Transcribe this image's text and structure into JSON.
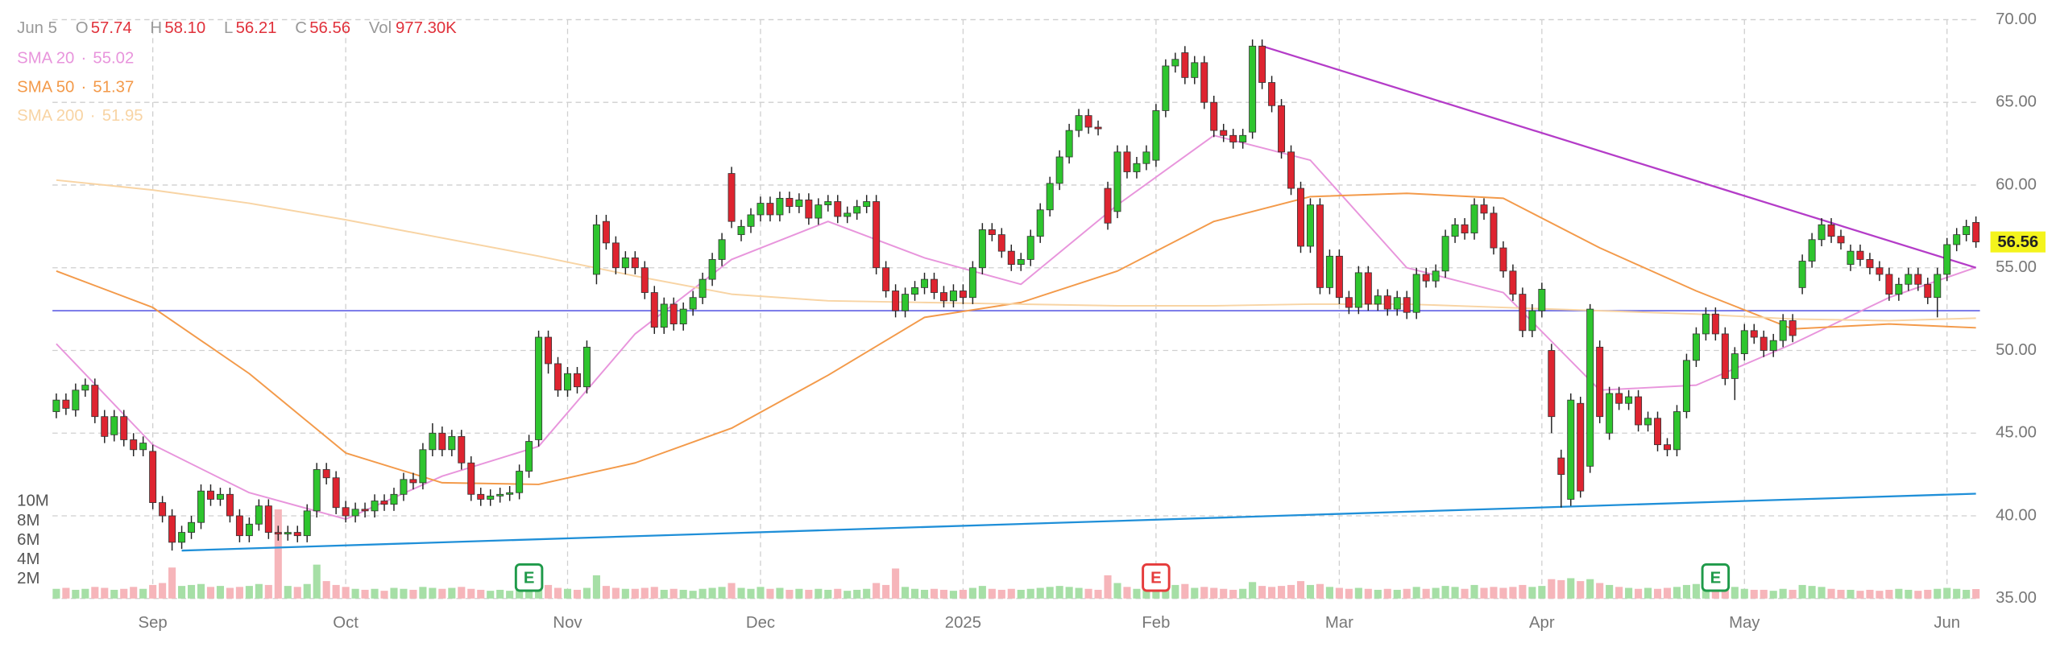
{
  "header": {
    "date": "Jun 5",
    "o_label": "O",
    "o": "57.74",
    "h_label": "H",
    "h": "58.10",
    "l_label": "L",
    "l": "56.21",
    "c_label": "C",
    "c": "56.56",
    "vol_label": "Vol",
    "vol": "977.30K"
  },
  "chart_data": {
    "type": "candlestick",
    "xlim": [
      -0.4,
      200.5
    ],
    "xticks": [
      {
        "value": 10,
        "label": "Sep"
      },
      {
        "value": 30,
        "label": "Oct"
      },
      {
        "value": 53,
        "label": "Nov"
      },
      {
        "value": 73,
        "label": "Dec"
      },
      {
        "value": 94,
        "label": "2025"
      },
      {
        "value": 114,
        "label": "Feb"
      },
      {
        "value": 133,
        "label": "Mar"
      },
      {
        "value": 154,
        "label": "Apr"
      },
      {
        "value": 175,
        "label": "May"
      },
      {
        "value": 196,
        "label": "Jun"
      }
    ],
    "ylim": [
      35,
      70
    ],
    "yticks": [
      {
        "value": 35,
        "label": "35.00"
      },
      {
        "value": 40,
        "label": "40.00"
      },
      {
        "value": 45,
        "label": "45.00"
      },
      {
        "value": 50,
        "label": "50.00"
      },
      {
        "value": 55,
        "label": "55.00"
      },
      {
        "value": 60,
        "label": "60.00"
      },
      {
        "value": 65,
        "label": "65.00"
      },
      {
        "value": 70,
        "label": "70.00"
      }
    ],
    "y2lim": [
      0,
      10
    ],
    "y2ticks": [
      {
        "value": 2,
        "label": "2M"
      },
      {
        "value": 4,
        "label": "4M"
      },
      {
        "value": 6,
        "label": "6M"
      },
      {
        "value": 8,
        "label": "8M"
      },
      {
        "value": 10,
        "label": "10M"
      }
    ],
    "grid": true,
    "open": [
      46.3,
      47.0,
      46.4,
      47.6,
      47.9,
      46.0,
      44.9,
      46.0,
      44.6,
      44.0,
      43.9,
      40.8,
      40.0,
      38.4,
      39.0,
      39.6,
      41.5,
      41.0,
      41.3,
      40.0,
      38.8,
      39.5,
      40.6,
      39.0,
      38.9,
      39.0,
      38.8,
      40.3,
      42.8,
      42.3,
      40.5,
      40.0,
      40.4,
      40.3,
      40.9,
      40.7,
      41.3,
      42.2,
      42.0,
      44.0,
      45.0,
      44.0,
      44.8,
      43.2,
      41.3,
      41.0,
      41.2,
      41.3,
      41.4,
      42.7,
      44.6,
      50.8,
      49.2,
      47.6,
      48.6,
      47.8,
      54.6,
      57.8,
      56.5,
      55.0,
      55.6,
      55.0,
      53.5,
      51.4,
      52.8,
      51.6,
      52.5,
      53.2,
      54.3,
      55.5,
      60.7,
      57.0,
      57.5,
      58.2,
      58.9,
      58.2,
      59.2,
      58.7,
      59.1,
      58.0,
      58.8,
      59.0,
      58.1,
      58.3,
      58.7,
      59.0,
      55.0,
      53.6,
      52.4,
      53.4,
      53.8,
      54.3,
      53.5,
      53.0,
      53.6,
      53.2,
      55.0,
      57.3,
      57.0,
      56.0,
      55.2,
      55.5,
      56.9,
      58.5,
      60.1,
      61.7,
      63.3,
      64.2,
      63.5,
      59.8,
      58.4,
      62.0,
      60.8,
      61.3,
      61.5,
      64.5,
      67.2,
      68.0,
      66.5,
      67.4,
      65.0,
      63.3,
      63.0,
      62.6,
      63.2,
      68.4,
      66.2,
      64.8,
      62.0,
      59.8,
      56.3,
      58.8,
      53.8,
      55.7,
      53.2,
      52.6,
      54.7,
      52.8,
      53.3,
      52.5,
      53.2,
      52.3,
      54.6,
      54.2,
      54.8,
      56.9,
      57.6,
      57.1,
      58.8,
      58.3,
      56.2,
      54.8,
      53.4,
      51.2,
      52.4,
      50.0,
      43.5,
      41.0,
      46.8,
      43.0,
      50.2,
      45.0,
      47.4,
      46.8,
      47.2,
      45.5,
      45.9,
      44.3,
      44.0,
      46.3,
      49.4,
      51.0,
      52.2,
      51.0,
      48.3,
      49.8,
      51.2,
      50.8,
      50.0,
      50.6,
      51.8,
      53.8,
      55.4,
      56.7,
      57.6,
      56.9,
      55.2,
      56.0,
      55.5,
      55.0,
      54.6,
      53.4,
      54.0,
      54.6,
      54.0,
      53.2,
      54.6,
      56.4,
      57.0,
      57.74
    ],
    "high": [
      47.4,
      47.4,
      48.0,
      48.3,
      48.3,
      46.4,
      46.4,
      46.4,
      45.0,
      44.8,
      44.3,
      41.2,
      40.4,
      39.4,
      40.0,
      41.9,
      41.9,
      41.7,
      41.7,
      40.4,
      39.9,
      41.0,
      41.0,
      39.4,
      39.4,
      39.4,
      40.7,
      43.2,
      43.2,
      42.7,
      40.9,
      40.8,
      40.8,
      41.3,
      41.3,
      41.7,
      42.6,
      42.6,
      44.4,
      45.6,
      45.4,
      45.2,
      45.2,
      43.6,
      41.7,
      41.6,
      41.7,
      41.8,
      43.1,
      44.9,
      51.2,
      51.2,
      49.6,
      49.0,
      49.0,
      50.6,
      58.2,
      58.2,
      56.9,
      56.0,
      56.0,
      55.4,
      53.9,
      53.2,
      53.2,
      52.9,
      53.6,
      54.7,
      55.9,
      57.1,
      61.1,
      57.9,
      58.6,
      59.3,
      59.3,
      59.6,
      59.6,
      59.5,
      59.5,
      59.2,
      59.4,
      59.4,
      58.7,
      59.1,
      59.4,
      59.4,
      55.4,
      54.0,
      53.8,
      54.2,
      54.7,
      54.7,
      53.9,
      54.0,
      54.0,
      55.4,
      57.7,
      57.7,
      57.4,
      56.4,
      55.9,
      57.3,
      58.9,
      60.5,
      62.1,
      63.7,
      64.6,
      64.6,
      63.9,
      60.2,
      62.4,
      62.4,
      61.7,
      62.4,
      64.9,
      67.6,
      68.0,
      68.4,
      67.8,
      67.8,
      65.4,
      63.7,
      63.4,
      63.4,
      68.8,
      68.8,
      66.6,
      65.2,
      62.4,
      60.2,
      59.2,
      59.2,
      56.1,
      56.1,
      53.6,
      55.1,
      55.1,
      53.7,
      53.7,
      53.6,
      53.6,
      55.0,
      55.0,
      55.2,
      57.3,
      58.0,
      58.0,
      59.2,
      59.2,
      58.7,
      56.6,
      55.2,
      53.8,
      52.8,
      54.1,
      50.4,
      44.0,
      47.4,
      47.2,
      52.8,
      50.6,
      47.8,
      47.8,
      47.6,
      47.6,
      46.3,
      46.3,
      44.7,
      46.7,
      49.8,
      51.4,
      52.6,
      52.6,
      51.4,
      50.2,
      51.6,
      51.6,
      51.2,
      51.0,
      52.2,
      52.2,
      55.8,
      57.1,
      58.0,
      58.0,
      57.3,
      56.4,
      56.4,
      55.9,
      55.4,
      55.0,
      54.4,
      55.0,
      55.0,
      54.4,
      55.0,
      56.8,
      57.4,
      57.9,
      58.1
    ],
    "low": [
      45.9,
      46.1,
      46.0,
      47.2,
      45.6,
      44.4,
      44.5,
      44.2,
      43.6,
      43.6,
      40.4,
      39.6,
      37.9,
      38.0,
      38.6,
      39.2,
      40.6,
      40.6,
      39.6,
      38.4,
      38.4,
      39.1,
      38.6,
      38.5,
      38.5,
      38.4,
      38.4,
      39.9,
      41.9,
      40.1,
      39.6,
      39.6,
      39.9,
      39.9,
      40.3,
      40.3,
      40.9,
      41.6,
      41.6,
      43.6,
      43.6,
      43.6,
      42.8,
      40.9,
      40.6,
      40.6,
      40.8,
      40.9,
      41.0,
      42.3,
      44.2,
      48.6,
      47.2,
      47.2,
      47.4,
      47.4,
      54.0,
      56.1,
      54.6,
      54.6,
      54.6,
      53.1,
      51.0,
      51.0,
      51.2,
      51.2,
      52.1,
      52.8,
      53.9,
      55.1,
      57.4,
      56.6,
      57.1,
      57.8,
      57.8,
      57.8,
      58.3,
      58.3,
      57.6,
      57.6,
      58.4,
      57.7,
      57.7,
      57.9,
      58.3,
      54.6,
      53.2,
      52.0,
      52.0,
      53.0,
      53.4,
      53.1,
      52.6,
      52.6,
      52.8,
      52.8,
      54.6,
      56.6,
      55.6,
      54.8,
      54.8,
      55.1,
      56.5,
      58.1,
      59.7,
      61.3,
      62.9,
      63.1,
      63.0,
      57.3,
      58.0,
      60.4,
      60.4,
      60.9,
      61.1,
      64.1,
      66.8,
      66.1,
      66.1,
      64.6,
      62.9,
      62.6,
      62.2,
      62.2,
      62.8,
      65.8,
      64.4,
      61.6,
      59.4,
      55.9,
      55.9,
      53.4,
      53.4,
      52.8,
      52.2,
      52.2,
      52.4,
      52.4,
      52.1,
      52.1,
      51.9,
      51.9,
      53.8,
      53.8,
      54.4,
      56.5,
      56.7,
      56.7,
      57.9,
      55.8,
      54.4,
      53.0,
      50.8,
      50.8,
      52.0,
      45.0,
      40.5,
      40.6,
      41.1,
      42.6,
      45.6,
      44.6,
      46.4,
      46.4,
      45.1,
      45.1,
      43.9,
      43.6,
      43.6,
      45.9,
      49.0,
      50.6,
      50.6,
      47.9,
      47.0,
      49.4,
      50.4,
      49.6,
      49.6,
      50.2,
      50.5,
      53.4,
      55.0,
      56.3,
      56.5,
      56.1,
      54.8,
      55.1,
      54.6,
      54.2,
      53.0,
      53.0,
      53.6,
      53.6,
      52.8,
      52.0,
      54.2,
      56.0,
      56.6,
      56.21
    ],
    "close": [
      47.0,
      46.5,
      47.6,
      47.9,
      46.0,
      44.8,
      46.0,
      44.6,
      44.0,
      44.4,
      40.8,
      40.0,
      38.4,
      39.0,
      39.6,
      41.5,
      41.0,
      41.3,
      40.0,
      38.8,
      39.5,
      40.6,
      39.0,
      38.9,
      39.0,
      38.8,
      40.3,
      42.8,
      42.3,
      40.5,
      40.0,
      40.4,
      40.3,
      40.9,
      40.7,
      41.3,
      42.2,
      42.0,
      44.0,
      45.0,
      44.0,
      44.8,
      43.2,
      41.3,
      41.0,
      41.2,
      41.3,
      41.4,
      42.7,
      44.5,
      50.8,
      49.2,
      47.6,
      48.6,
      47.8,
      50.2,
      57.6,
      56.5,
      55.0,
      55.6,
      55.0,
      53.5,
      51.4,
      52.8,
      51.6,
      52.5,
      53.2,
      54.3,
      55.5,
      56.7,
      57.8,
      57.5,
      58.2,
      58.9,
      58.2,
      59.2,
      58.7,
      59.1,
      58.0,
      58.8,
      59.0,
      58.1,
      58.3,
      58.7,
      59.0,
      55.0,
      53.6,
      52.4,
      53.4,
      53.8,
      54.3,
      53.5,
      53.0,
      53.6,
      53.2,
      55.0,
      57.3,
      57.0,
      56.0,
      55.2,
      55.5,
      56.9,
      58.5,
      60.1,
      61.7,
      63.3,
      64.2,
      63.5,
      63.4,
      57.7,
      62.0,
      60.8,
      61.3,
      62.0,
      64.5,
      67.2,
      67.6,
      66.5,
      67.4,
      65.0,
      63.3,
      63.0,
      62.6,
      63.0,
      68.4,
      66.2,
      64.8,
      62.0,
      59.8,
      56.3,
      58.8,
      53.8,
      55.7,
      53.2,
      52.6,
      54.7,
      52.8,
      53.3,
      52.5,
      53.2,
      52.3,
      54.6,
      54.2,
      54.8,
      56.9,
      57.6,
      57.1,
      58.8,
      58.3,
      56.2,
      54.8,
      53.4,
      51.2,
      52.4,
      53.7,
      46.0,
      42.5,
      47.0,
      41.5,
      52.5,
      46.0,
      47.4,
      46.8,
      47.2,
      45.5,
      45.9,
      44.3,
      44.0,
      46.3,
      49.4,
      51.0,
      52.2,
      51.0,
      48.3,
      49.8,
      51.2,
      50.8,
      50.0,
      50.6,
      51.8,
      50.9,
      55.4,
      56.7,
      57.6,
      56.9,
      56.5,
      56.0,
      55.5,
      55.0,
      54.6,
      53.4,
      54.0,
      54.6,
      54.0,
      53.2,
      54.6,
      56.4,
      57.0,
      57.5,
      56.56
    ],
    "volume": [
      1.0,
      1.1,
      0.9,
      1.0,
      1.2,
      1.1,
      0.9,
      1.0,
      1.2,
      1.0,
      1.4,
      1.6,
      3.2,
      1.3,
      1.4,
      1.5,
      1.2,
      1.3,
      1.1,
      1.2,
      1.3,
      1.5,
      1.4,
      9.2,
      1.3,
      1.2,
      1.5,
      3.5,
      1.8,
      1.4,
      1.2,
      1.0,
      0.9,
      1.0,
      0.8,
      1.1,
      1.0,
      0.9,
      1.2,
      1.1,
      1.0,
      1.1,
      1.2,
      1.0,
      0.9,
      0.8,
      0.9,
      0.8,
      1.0,
      1.2,
      2.6,
      1.4,
      1.1,
      1.0,
      0.9,
      1.1,
      2.4,
      1.3,
      1.1,
      1.0,
      1.0,
      1.1,
      1.2,
      0.9,
      1.0,
      0.9,
      0.8,
      1.0,
      1.1,
      1.2,
      1.6,
      1.1,
      1.0,
      1.2,
      1.0,
      1.1,
      0.9,
      1.0,
      0.9,
      1.0,
      0.9,
      1.0,
      0.8,
      0.9,
      1.0,
      1.6,
      1.4,
      3.1,
      1.2,
      1.0,
      0.9,
      1.0,
      0.9,
      0.8,
      0.9,
      1.1,
      1.3,
      1.0,
      0.9,
      1.0,
      0.9,
      1.0,
      1.1,
      1.2,
      1.3,
      1.2,
      1.1,
      1.0,
      0.9,
      2.4,
      1.6,
      1.2,
      1.0,
      1.1,
      2.3,
      2.0,
      1.4,
      1.5,
      1.1,
      1.2,
      1.1,
      1.0,
      0.9,
      1.0,
      1.7,
      1.3,
      1.2,
      1.3,
      1.4,
      1.8,
      1.4,
      1.5,
      1.2,
      1.1,
      1.0,
      1.1,
      1.0,
      0.9,
      1.0,
      0.9,
      1.0,
      1.2,
      1.0,
      1.1,
      1.3,
      1.2,
      1.0,
      1.4,
      1.1,
      1.2,
      1.1,
      1.2,
      1.4,
      1.2,
      1.3,
      2.0,
      1.9,
      2.1,
      1.8,
      2.0,
      1.6,
      1.4,
      1.2,
      1.1,
      1.0,
      1.1,
      1.0,
      1.1,
      1.2,
      1.4,
      1.5,
      1.3,
      1.2,
      1.1,
      1.2,
      1.0,
      0.9,
      0.9,
      0.8,
      1.0,
      0.9,
      1.4,
      1.3,
      1.2,
      1.0,
      0.9,
      0.9,
      0.8,
      0.9,
      0.8,
      0.9,
      1.0,
      0.9,
      0.8,
      0.9,
      1.0,
      1.1,
      1.0,
      0.9,
      0.9773
    ],
    "up_color": "#2ec52e",
    "down_color": "#de2430",
    "volume_up_color": "#a6dfa6",
    "volume_down_color": "#f6b5ba",
    "last_price_color": "#f4f41c",
    "legend_separator": "·",
    "series": [
      {
        "name": "SMA 20",
        "color": "#e895dc",
        "x": [
          0,
          10,
          20,
          30,
          40,
          50,
          60,
          70,
          80,
          90,
          100,
          110,
          120,
          130,
          140,
          150,
          160,
          170,
          180,
          190,
          199
        ],
        "values": [
          50.4,
          44.3,
          41.4,
          39.8,
          42.4,
          44.2,
          51.0,
          55.5,
          57.8,
          55.6,
          54.0,
          58.8,
          63.0,
          61.5,
          55.0,
          53.5,
          47.6,
          47.9,
          50.4,
          53.2,
          55.02
        ]
      },
      {
        "name": "SMA 50",
        "color": "#f39a4a",
        "x": [
          0,
          10,
          20,
          30,
          40,
          50,
          60,
          70,
          80,
          90,
          100,
          110,
          120,
          130,
          140,
          150,
          160,
          170,
          180,
          190,
          199
        ],
        "values": [
          54.8,
          52.6,
          48.6,
          43.8,
          42.0,
          41.9,
          43.2,
          45.3,
          48.5,
          52.0,
          52.9,
          54.8,
          57.8,
          59.3,
          59.5,
          59.2,
          56.2,
          53.6,
          51.3,
          51.6,
          51.37
        ]
      },
      {
        "name": "SMA 200",
        "color": "#f8d4a4",
        "x": [
          0,
          10,
          20,
          30,
          40,
          50,
          60,
          70,
          80,
          90,
          100,
          110,
          120,
          130,
          140,
          150,
          160,
          170,
          180,
          190,
          199
        ],
        "values": [
          60.3,
          59.7,
          58.9,
          57.9,
          56.8,
          55.7,
          54.5,
          53.4,
          53.0,
          52.9,
          52.8,
          52.7,
          52.7,
          52.8,
          52.8,
          52.6,
          52.4,
          52.2,
          51.9,
          51.8,
          51.95
        ]
      }
    ],
    "trendlines": [
      {
        "color": "#b43cc8",
        "x": [
          125,
          199
        ],
        "values": [
          68.4,
          55.0
        ]
      },
      {
        "color": "#1f8fd8",
        "x": [
          13,
          199
        ],
        "values": [
          37.9,
          41.34
        ]
      }
    ],
    "hlines": [
      {
        "color": "#6a6ae6",
        "value": 52.4
      }
    ],
    "events": {
      "x": [
        49,
        114,
        172
      ],
      "labels": [
        "E",
        "E",
        "E"
      ],
      "colors": [
        "#1f9a4a",
        "#e53b3b",
        "#1f9a4a"
      ]
    }
  }
}
